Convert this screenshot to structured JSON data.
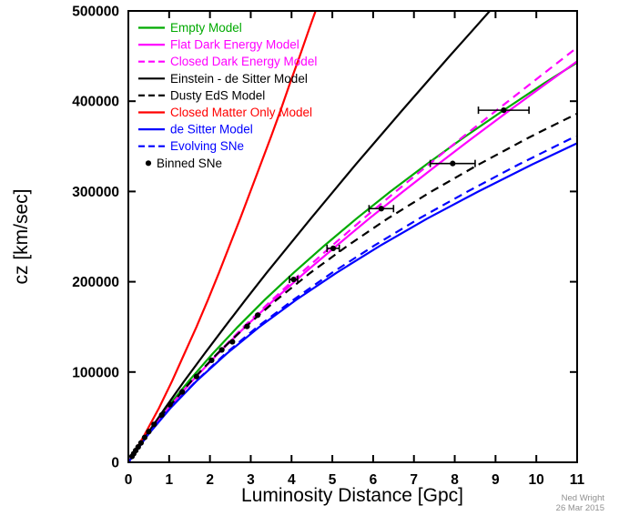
{
  "chart_data": {
    "type": "line",
    "title": "",
    "xlabel": "Luminosity Distance [Gpc]",
    "ylabel": "cz [km/sec]",
    "xlim": [
      0,
      11
    ],
    "ylim": [
      0,
      500000
    ],
    "xticks": [
      0,
      1,
      2,
      3,
      4,
      5,
      6,
      7,
      8,
      9,
      10,
      11
    ],
    "yticks": [
      0,
      100000,
      200000,
      300000,
      400000,
      500000
    ],
    "grid": false,
    "legend_position": "top-left-inside",
    "credit_name": "Ned Wright",
    "credit_date": "26 Mar 2015",
    "series": [
      {
        "name": "Empty Model",
        "color": "#00aa00",
        "style": "solid",
        "points": [
          [
            0,
            0
          ],
          [
            0.45,
            29979
          ],
          [
            0.94,
            59958
          ],
          [
            1.48,
            89938
          ],
          [
            2.06,
            119917
          ],
          [
            2.68,
            149896
          ],
          [
            3.34,
            179875
          ],
          [
            4.05,
            209855
          ],
          [
            4.8,
            239834
          ],
          [
            5.59,
            269813
          ],
          [
            6.42,
            299792
          ],
          [
            7.3,
            329772
          ],
          [
            8.22,
            359751
          ],
          [
            9.19,
            389730
          ],
          [
            10.19,
            419709
          ],
          [
            11,
            442793
          ]
        ]
      },
      {
        "name": "Flat Dark Energy Model",
        "color": "#ff00ff",
        "style": "solid",
        "points": [
          [
            0,
            0
          ],
          [
            0.46,
            29979
          ],
          [
            0.98,
            59958
          ],
          [
            1.56,
            89938
          ],
          [
            2.19,
            119917
          ],
          [
            2.86,
            149896
          ],
          [
            3.57,
            179875
          ],
          [
            4.32,
            209855
          ],
          [
            5.1,
            239834
          ],
          [
            5.9,
            269813
          ],
          [
            6.73,
            299792
          ],
          [
            7.58,
            329772
          ],
          [
            8.45,
            359751
          ],
          [
            9.34,
            389730
          ],
          [
            10.25,
            419709
          ],
          [
            11,
            444200
          ]
        ]
      },
      {
        "name": "Closed Dark Energy Model",
        "color": "#ff00ff",
        "style": "dashed",
        "points": [
          [
            0,
            0
          ],
          [
            0.46,
            29979
          ],
          [
            0.98,
            59958
          ],
          [
            1.55,
            89938
          ],
          [
            2.17,
            119917
          ],
          [
            2.82,
            149896
          ],
          [
            3.52,
            179875
          ],
          [
            4.24,
            209855
          ],
          [
            4.99,
            239834
          ],
          [
            5.76,
            269813
          ],
          [
            6.55,
            299792
          ],
          [
            7.36,
            329772
          ],
          [
            8.18,
            359751
          ],
          [
            9.02,
            389730
          ],
          [
            9.87,
            419709
          ],
          [
            10.72,
            449689
          ],
          [
            11,
            459400
          ]
        ]
      },
      {
        "name": "Einstein - de Sitter Model",
        "color": "#000000",
        "style": "solid",
        "points": [
          [
            0,
            0
          ],
          [
            0.44,
            29979
          ],
          [
            0.9,
            59958
          ],
          [
            1.37,
            89938
          ],
          [
            1.86,
            119917
          ],
          [
            2.36,
            149896
          ],
          [
            2.87,
            179875
          ],
          [
            3.39,
            209855
          ],
          [
            3.93,
            239834
          ],
          [
            4.47,
            269813
          ],
          [
            5.02,
            299792
          ],
          [
            5.57,
            329772
          ],
          [
            6.14,
            359751
          ],
          [
            6.71,
            389730
          ],
          [
            7.29,
            419709
          ],
          [
            7.87,
            449689
          ],
          [
            8.46,
            479668
          ],
          [
            8.86,
            500000
          ]
        ]
      },
      {
        "name": "Dusty EdS Model",
        "color": "#000000",
        "style": "dashed",
        "points": [
          [
            0,
            0
          ],
          [
            0.46,
            29979
          ],
          [
            0.97,
            59958
          ],
          [
            1.54,
            89938
          ],
          [
            2.17,
            119917
          ],
          [
            2.87,
            149896
          ],
          [
            3.63,
            179875
          ],
          [
            4.46,
            209855
          ],
          [
            5.37,
            239834
          ],
          [
            6.35,
            269813
          ],
          [
            7.42,
            299792
          ],
          [
            8.58,
            329772
          ],
          [
            9.82,
            359751
          ],
          [
            10.48,
            374740
          ],
          [
            11,
            386200
          ]
        ]
      },
      {
        "name": "Closed Matter Only Model",
        "color": "#ff0000",
        "style": "solid",
        "points": [
          [
            0,
            0
          ],
          [
            0.39,
            29979
          ],
          [
            0.75,
            59958
          ],
          [
            1.07,
            89938
          ],
          [
            1.37,
            119917
          ],
          [
            1.67,
            149896
          ],
          [
            1.95,
            179875
          ],
          [
            2.22,
            209855
          ],
          [
            2.48,
            239834
          ],
          [
            2.74,
            269813
          ],
          [
            2.99,
            299792
          ],
          [
            3.24,
            329772
          ],
          [
            3.49,
            359751
          ],
          [
            3.73,
            389730
          ],
          [
            3.96,
            419709
          ],
          [
            4.2,
            449689
          ],
          [
            4.43,
            479668
          ],
          [
            4.59,
            500000
          ]
        ]
      },
      {
        "name": "de Sitter Model",
        "color": "#0000ff",
        "style": "solid",
        "points": [
          [
            0,
            0
          ],
          [
            0.47,
            29979
          ],
          [
            1.03,
            59958
          ],
          [
            1.67,
            89938
          ],
          [
            2.4,
            119917
          ],
          [
            3.21,
            149896
          ],
          [
            4.11,
            179875
          ],
          [
            5.1,
            209855
          ],
          [
            6.17,
            239834
          ],
          [
            7.32,
            269813
          ],
          [
            8.57,
            299792
          ],
          [
            9.89,
            329772
          ],
          [
            11,
            353400
          ]
        ]
      },
      {
        "name": "Evolving SNe",
        "color": "#0000ff",
        "style": "dashed",
        "points": [
          [
            0,
            0
          ],
          [
            0.47,
            29979
          ],
          [
            1.02,
            59958
          ],
          [
            1.66,
            89938
          ],
          [
            2.37,
            119917
          ],
          [
            3.16,
            149896
          ],
          [
            4.04,
            179875
          ],
          [
            4.99,
            209855
          ],
          [
            6.02,
            239834
          ],
          [
            7.12,
            269813
          ],
          [
            8.31,
            299792
          ],
          [
            9.56,
            329772
          ],
          [
            10.9,
            359751
          ],
          [
            11,
            361000
          ]
        ]
      }
    ],
    "scatter": {
      "name": "Binned SNe",
      "color": "#000000",
      "points": [
        {
          "x": 0.09,
          "y": 6500,
          "xerr": 0
        },
        {
          "x": 0.13,
          "y": 9500,
          "xerr": 0
        },
        {
          "x": 0.18,
          "y": 13000,
          "xerr": 0
        },
        {
          "x": 0.24,
          "y": 17000,
          "xerr": 0
        },
        {
          "x": 0.31,
          "y": 21500,
          "xerr": 0
        },
        {
          "x": 0.4,
          "y": 27500,
          "xerr": 0
        },
        {
          "x": 0.5,
          "y": 34000,
          "xerr": 0
        },
        {
          "x": 0.63,
          "y": 42000,
          "xerr": 0
        },
        {
          "x": 0.82,
          "y": 52500,
          "xerr": 0
        },
        {
          "x": 1.02,
          "y": 64000,
          "xerr": 0
        },
        {
          "x": 1.32,
          "y": 78000,
          "xerr": 0
        },
        {
          "x": 1.67,
          "y": 95000,
          "xerr": 0
        },
        {
          "x": 2.04,
          "y": 113000,
          "xerr": 0
        },
        {
          "x": 2.29,
          "y": 124500,
          "xerr": 0
        },
        {
          "x": 2.55,
          "y": 133500,
          "xerr": 0
        },
        {
          "x": 2.91,
          "y": 150500,
          "xerr": 0
        },
        {
          "x": 3.17,
          "y": 163000,
          "xerr": 0
        },
        {
          "x": 4.05,
          "y": 202500,
          "xerr": 0.1
        },
        {
          "x": 5.02,
          "y": 237000,
          "xerr": 0.15
        },
        {
          "x": 6.2,
          "y": 281000,
          "xerr": 0.3
        },
        {
          "x": 7.95,
          "y": 331000,
          "xerr": 0.55
        },
        {
          "x": 9.2,
          "y": 390000,
          "xerr": 0.62
        }
      ]
    }
  }
}
